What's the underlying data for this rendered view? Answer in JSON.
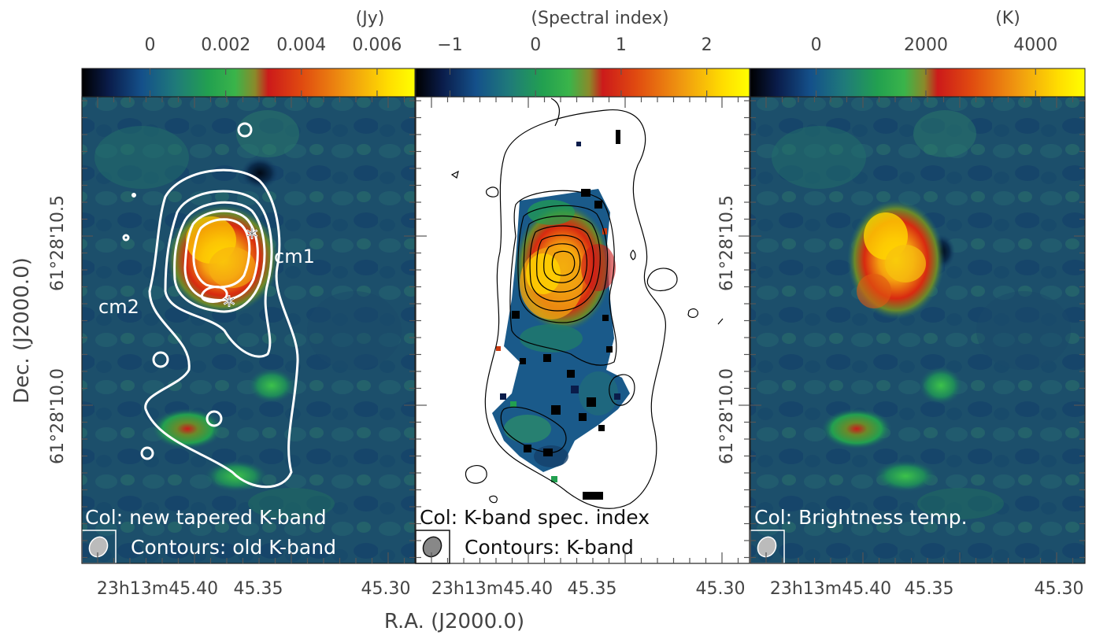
{
  "figure": {
    "ylabel": "Dec. (J2000.0)",
    "xlabel": "R.A. (J2000.0)"
  },
  "panels": [
    {
      "colorbar_title": "(Jy)",
      "colorbar_ticks": [
        "0",
        "0.002",
        "0.004",
        "0.006"
      ],
      "colorbar_values": [
        0,
        0.002,
        0.004,
        0.006
      ],
      "colorbar_range": [
        -0.0018,
        0.007
      ],
      "ytick_labels": [
        "61°28'10.5",
        "61°28'10.0"
      ],
      "xtick_labels": [
        "23h13m45.40",
        "45.35",
        "45.30"
      ],
      "col_label": "Col: new tapered K-band",
      "contour_label": "Contours: old K-band",
      "contour_color": "#ffffff",
      "background": "colormap",
      "annotations": [
        "cm1",
        "cm2"
      ]
    },
    {
      "colorbar_title": "(Spectral index)",
      "colorbar_ticks": [
        "−1",
        "0",
        "1",
        "2"
      ],
      "colorbar_values": [
        -1,
        0,
        1,
        2
      ],
      "colorbar_range": [
        -1.4,
        2.5
      ],
      "ytick_labels": [],
      "xtick_labels": [
        "23h13m45.40",
        "45.35",
        "45.30"
      ],
      "col_label": "Col: K-band spec. index",
      "contour_label": "Contours: K-band",
      "contour_color": "#000000",
      "background": "white",
      "annotations": []
    },
    {
      "colorbar_title": "(K)",
      "colorbar_ticks": [
        "0",
        "2000",
        "4000"
      ],
      "colorbar_values": [
        0,
        2000,
        4000
      ],
      "colorbar_range": [
        -1200,
        4900
      ],
      "ytick_labels": [
        "61°28'10.5",
        "61°28'10.0"
      ],
      "xtick_labels": [
        "23h13m45.40",
        "45.35",
        "45.30"
      ],
      "col_label": "Col: Brightness temp.",
      "contour_label": "",
      "contour_color": "",
      "background": "colormap",
      "annotations": []
    }
  ],
  "colormap": [
    "#000000",
    "#0a1c4a",
    "#14508a",
    "#1f7a7a",
    "#22a050",
    "#3ab44a",
    "#8a8a2a",
    "#cc1a1a",
    "#e04a10",
    "#f09a10",
    "#ffdd00",
    "#ffff00"
  ],
  "chart_data": {
    "type": "heatmap",
    "panels": 3,
    "xlabel": "R.A. (J2000.0)",
    "ylabel": "Dec. (J2000.0)",
    "xticks": [
      "23h13m45.40",
      "45.35",
      "45.30"
    ],
    "yticks": [
      "61°28'10.5",
      "61°28'10.0"
    ],
    "series": [
      {
        "name": "Col: new tapered K-band",
        "unit": "(Jy)",
        "colorbar": [
          0,
          0.002,
          0.004,
          0.006
        ],
        "contours": "Contours: old K-band"
      },
      {
        "name": "Col: K-band spec. index",
        "unit": "(Spectral index)",
        "colorbar": [
          -1,
          0,
          1,
          2
        ],
        "contours": "Contours: K-band"
      },
      {
        "name": "Col: Brightness temp.",
        "unit": "(K)",
        "colorbar": [
          0,
          2000,
          4000
        ]
      }
    ]
  }
}
